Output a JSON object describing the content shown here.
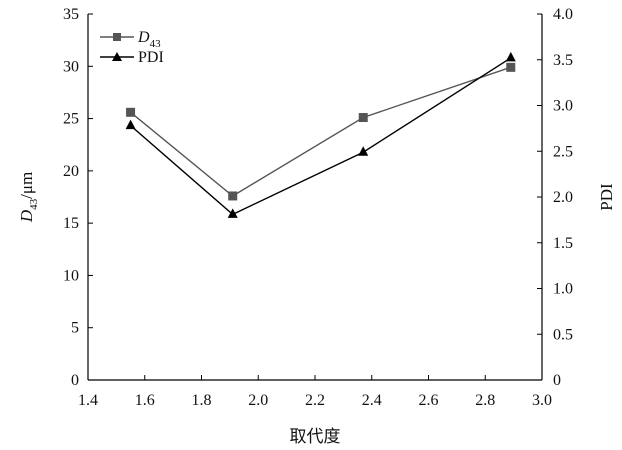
{
  "chart_data": {
    "type": "line",
    "xlabel": "取代度",
    "ylabel_left": {
      "main": "D",
      "sub": "43",
      "unit": "/μm"
    },
    "ylabel_right": "PDI",
    "xlim": [
      1.4,
      3.0
    ],
    "ylim_left": [
      0,
      35
    ],
    "ylim_right": [
      0,
      4.0
    ],
    "x_ticks": [
      "1.4",
      "1.6",
      "1.8",
      "2.0",
      "2.2",
      "2.4",
      "2.6",
      "2.8",
      "3.0"
    ],
    "y_left_ticks": [
      "0",
      "5",
      "10",
      "15",
      "20",
      "25",
      "30",
      "35"
    ],
    "y_right_ticks": [
      "0",
      "0.5",
      "1.0",
      "1.5",
      "2.0",
      "2.5",
      "3.0",
      "3.5",
      "4.0"
    ],
    "grid": false,
    "legend_position": "top-left",
    "series": [
      {
        "name": "D43",
        "legend_main": "D",
        "legend_sub": "43",
        "axis": "left",
        "marker": "square",
        "color": "#555555",
        "x": [
          1.55,
          1.91,
          2.37,
          2.89
        ],
        "values": [
          25.6,
          17.6,
          25.1,
          29.9
        ]
      },
      {
        "name": "PDI",
        "legend_main": "PDI",
        "axis": "right",
        "marker": "triangle",
        "color": "#000000",
        "x": [
          1.55,
          1.91,
          2.37,
          2.89
        ],
        "values": [
          2.78,
          1.81,
          2.49,
          3.52
        ]
      }
    ]
  }
}
